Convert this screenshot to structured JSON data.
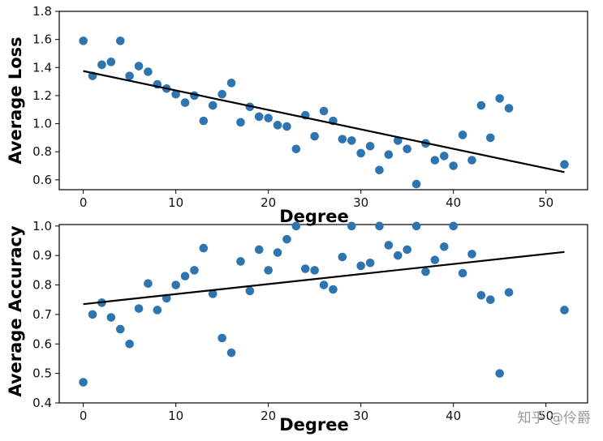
{
  "watermark": "知乎 @伶爵",
  "chart_data": [
    {
      "type": "scatter",
      "xlabel": "Degree",
      "ylabel": "Average Loss",
      "xlim": [
        -2.6,
        54.5
      ],
      "ylim": [
        0.53,
        1.8
      ],
      "xticks": [
        0,
        10,
        20,
        30,
        40,
        50
      ],
      "yticks": [
        0.6,
        0.8,
        1.0,
        1.2,
        1.4,
        1.6,
        1.8
      ],
      "ytick_labels": [
        "0.6",
        "0.8",
        "1.0",
        "1.2",
        "1.4",
        "1.6",
        "1.8"
      ],
      "grid": false,
      "point_color": "#2e75b0",
      "line_color": "#000000",
      "trend_line": {
        "x": [
          0,
          52
        ],
        "y": [
          1.375,
          0.655
        ]
      },
      "x": [
        0,
        1,
        2,
        3,
        4,
        5,
        6,
        7,
        8,
        9,
        10,
        11,
        12,
        13,
        14,
        15,
        16,
        17,
        18,
        19,
        20,
        21,
        22,
        23,
        24,
        25,
        26,
        27,
        28,
        29,
        30,
        31,
        32,
        33,
        34,
        35,
        36,
        37,
        38,
        39,
        40,
        41,
        42,
        43,
        44,
        45,
        46,
        52
      ],
      "y": [
        1.59,
        1.34,
        1.42,
        1.44,
        1.59,
        1.34,
        1.41,
        1.37,
        1.28,
        1.25,
        1.21,
        1.15,
        1.2,
        1.02,
        1.13,
        1.21,
        1.29,
        1.01,
        1.12,
        1.05,
        1.04,
        0.99,
        0.98,
        0.82,
        1.06,
        0.91,
        1.09,
        1.02,
        0.89,
        0.88,
        0.79,
        0.84,
        0.67,
        0.78,
        0.88,
        0.82,
        0.57,
        0.86,
        0.74,
        0.77,
        0.7,
        0.92,
        0.74,
        1.13,
        0.9,
        1.18,
        1.11,
        0.71
      ]
    },
    {
      "type": "scatter",
      "xlabel": "Degree",
      "ylabel": "Average Accuracy",
      "xlim": [
        -2.6,
        54.5
      ],
      "ylim": [
        0.4,
        1.005
      ],
      "xticks": [
        0,
        10,
        20,
        30,
        40,
        50
      ],
      "yticks": [
        0.4,
        0.5,
        0.6,
        0.7,
        0.8,
        0.9,
        1.0
      ],
      "ytick_labels": [
        "0.4",
        "0.5",
        "0.6",
        "0.7",
        "0.8",
        "0.9",
        "1.0"
      ],
      "grid": false,
      "point_color": "#2e75b0",
      "line_color": "#000000",
      "trend_line": {
        "x": [
          0,
          52
        ],
        "y": [
          0.735,
          0.912
        ]
      },
      "x": [
        0,
        1,
        2,
        3,
        4,
        5,
        6,
        7,
        8,
        9,
        10,
        11,
        12,
        13,
        14,
        15,
        16,
        17,
        18,
        19,
        20,
        21,
        22,
        23,
        24,
        25,
        26,
        27,
        28,
        29,
        30,
        31,
        32,
        33,
        34,
        35,
        36,
        37,
        38,
        39,
        40,
        41,
        42,
        43,
        44,
        45,
        46,
        52
      ],
      "y": [
        0.47,
        0.7,
        0.74,
        0.69,
        0.65,
        0.6,
        0.72,
        0.805,
        0.715,
        0.755,
        0.8,
        0.83,
        0.85,
        0.925,
        0.77,
        0.62,
        0.57,
        0.88,
        0.78,
        0.92,
        0.85,
        0.91,
        0.955,
        1.0,
        0.855,
        0.85,
        0.8,
        0.785,
        0.895,
        1.0,
        0.865,
        0.875,
        1.0,
        0.935,
        0.9,
        0.92,
        1.0,
        0.845,
        0.885,
        0.93,
        1.0,
        0.84,
        0.905,
        0.765,
        0.75,
        0.5,
        0.775,
        0.715
      ]
    }
  ]
}
